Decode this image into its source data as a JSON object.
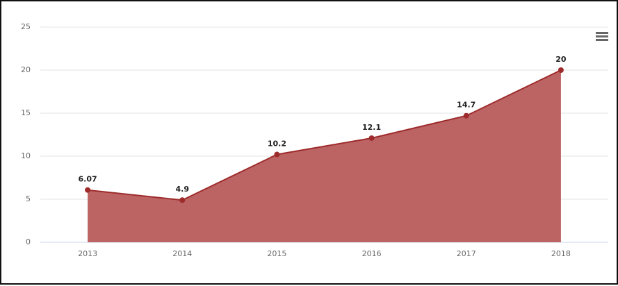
{
  "chart_data": {
    "type": "area",
    "categories": [
      "2013",
      "2014",
      "2015",
      "2016",
      "2017",
      "2018"
    ],
    "values": [
      6.07,
      4.9,
      10.2,
      12.1,
      14.7,
      20
    ],
    "color": "#b85c5c",
    "line_color": "#9e2b2b",
    "ylim": [
      0,
      25
    ],
    "yticks": [
      0,
      5,
      10,
      15,
      20,
      25
    ],
    "grid": true
  }
}
